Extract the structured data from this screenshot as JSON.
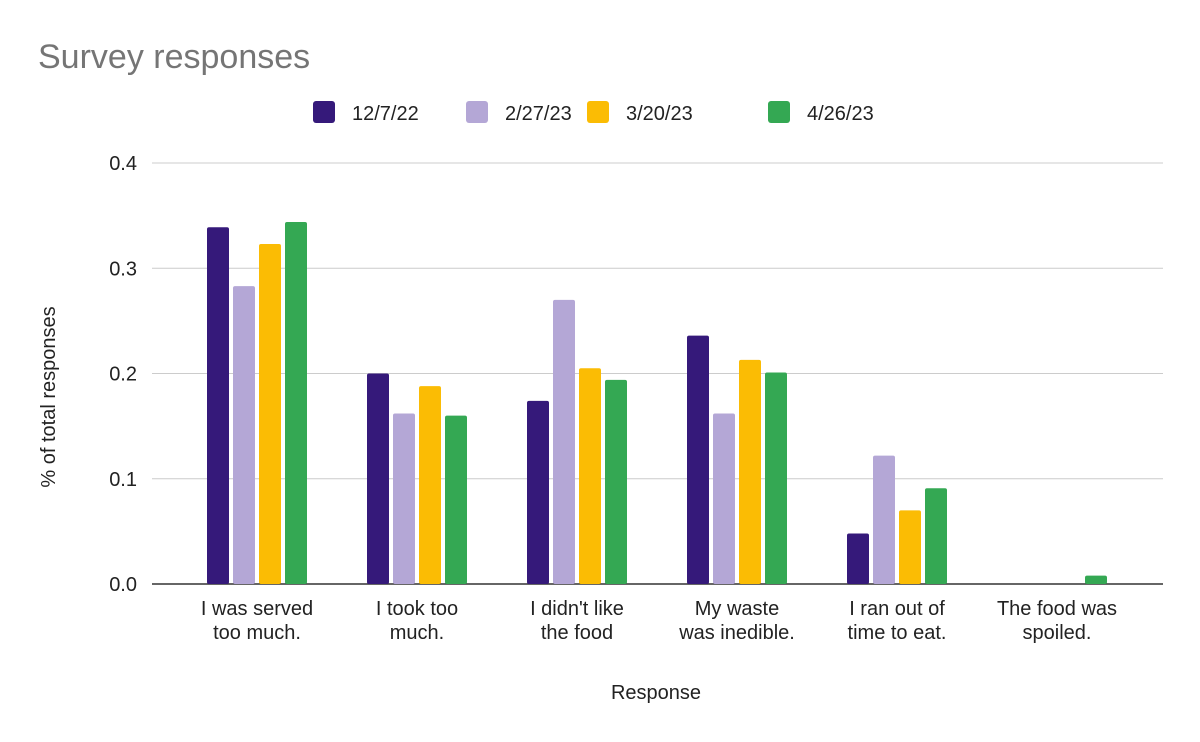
{
  "chart_data": {
    "type": "bar",
    "title": "Survey responses",
    "xlabel": "Response",
    "ylabel": "% of total responses",
    "ylim": [
      0,
      0.4
    ],
    "yticks": [
      "0.0",
      "0.1",
      "0.2",
      "0.3",
      "0.4"
    ],
    "grid": true,
    "legend_position": "top",
    "categories": [
      [
        "I was served",
        "too much."
      ],
      [
        "I took too",
        "much."
      ],
      [
        "I didn't like",
        "the food"
      ],
      [
        "My waste",
        "was inedible."
      ],
      [
        "I ran out of",
        "time to eat."
      ],
      [
        "The food was",
        "spoiled."
      ]
    ],
    "series": [
      {
        "name": "12/7/22",
        "color": "#35197a",
        "values": [
          0.339,
          0.2,
          0.174,
          0.236,
          0.048,
          0
        ]
      },
      {
        "name": "2/27/23",
        "color": "#b4a7d6",
        "values": [
          0.283,
          0.162,
          0.27,
          0.162,
          0.122,
          0
        ]
      },
      {
        "name": "3/20/23",
        "color": "#fbbc04",
        "values": [
          0.323,
          0.188,
          0.205,
          0.213,
          0.07,
          0
        ]
      },
      {
        "name": "4/26/23",
        "color": "#34a853",
        "values": [
          0.344,
          0.16,
          0.194,
          0.201,
          0.091,
          0.008
        ]
      }
    ]
  }
}
